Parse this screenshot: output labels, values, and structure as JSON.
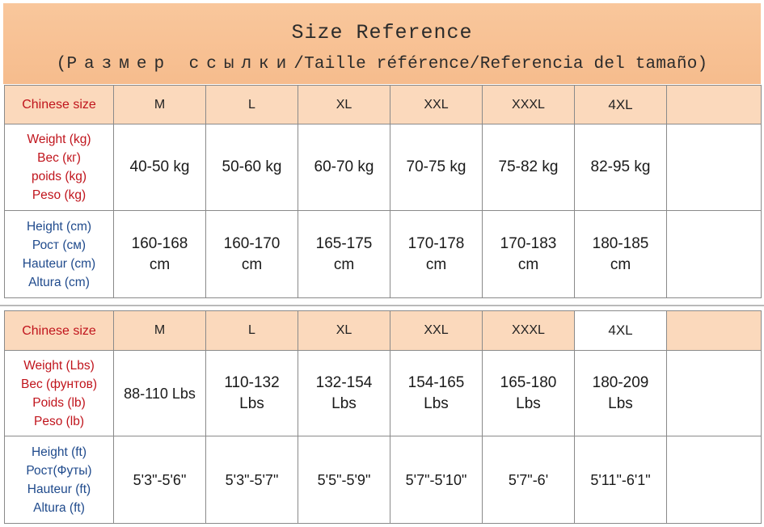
{
  "header": {
    "title": "Size Reference",
    "subtitle_open": "(",
    "subtitle_ru": "Размер ссылки",
    "subtitle_rest": "/Taille référence/Referencia del tamaño)"
  },
  "table_kg": {
    "size_label": "Chinese size",
    "sizes": [
      "M",
      "L",
      "XL",
      "XXL",
      "XXXL",
      "4XL"
    ],
    "weight_labels": [
      "Weight (kg)",
      "Вес (кг)",
      "poids (kg)",
      "Peso (kg)"
    ],
    "weights": [
      "40-50 kg",
      "50-60 kg",
      "60-70 kg",
      "70-75 kg",
      "75-82 kg",
      "82-95 kg"
    ],
    "height_labels": [
      "Height (cm)",
      "Рост (см)",
      "Hauteur (cm)",
      "Altura (cm)"
    ],
    "heights": [
      [
        "160-168",
        "cm"
      ],
      [
        "160-170",
        "cm"
      ],
      [
        "165-175",
        "cm"
      ],
      [
        "170-178",
        "cm"
      ],
      [
        "170-183",
        "cm"
      ],
      [
        "180-185",
        "cm"
      ]
    ]
  },
  "table_lbs": {
    "size_label": "Chinese size",
    "sizes": [
      "M",
      "L",
      "XL",
      "XXL",
      "XXXL",
      "4XL"
    ],
    "weight_labels": [
      "Weight (Lbs)",
      "Вес (фунтов)",
      "Poids (lb)",
      "Peso (lb)"
    ],
    "weights": [
      [
        "88-110 Lbs",
        ""
      ],
      [
        "110-132",
        "Lbs"
      ],
      [
        "132-154",
        "Lbs"
      ],
      [
        "154-165",
        "Lbs"
      ],
      [
        "165-180",
        "Lbs"
      ],
      [
        "180-209",
        "Lbs"
      ]
    ],
    "height_labels": [
      "Height (ft)",
      "Рост(Футы)",
      "Hauteur (ft)",
      "Altura (ft)"
    ],
    "heights": [
      "5'3\"-5'6\"",
      "5'3\"-5'7\"",
      "5'5\"-5'9\"",
      "5'7\"-5'10\"",
      "5'7\"-6'",
      "5'11\"-6'1\""
    ]
  },
  "colors": {
    "header_bg": "#f7c193",
    "size_row_bg": "#fbd9bc",
    "label_red": "#c0141c",
    "label_blue": "#1f4a8c"
  }
}
